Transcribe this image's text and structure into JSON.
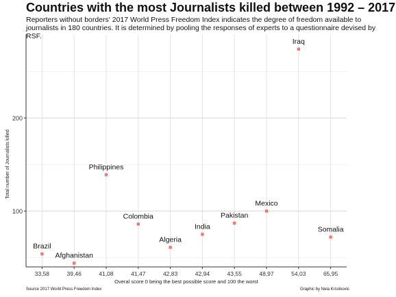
{
  "title": "Countries with the most Journalists killed between 1992 – 2017",
  "subtitle": "Reporters without borders' 2017 World Press Freedom Index indicates the degree of freedom available to journalists in 180 countries. It is determined by pooling the responses of experts to a questionnaire devised by RSF.",
  "source": "Source 2017 World Press Freedom Index",
  "credit": "Graphic by Nela Krsnikovic",
  "colors": {
    "point": "#f07a6e",
    "grid": "#e4e4e4",
    "axis": "#333333"
  },
  "chart_data": {
    "type": "scatter",
    "xlabel": "Overal score 0 being the best possible score and 100 the worst",
    "ylabel": "Total number of Journalists killed",
    "categories": [
      "33,58",
      "39,46",
      "41,08",
      "41,47",
      "42,83",
      "42,94",
      "43,55",
      "48,97",
      "54,03",
      "65,95"
    ],
    "ylim": [
      40,
      290
    ],
    "yticks": [
      100,
      200
    ],
    "grid": true,
    "points": [
      {
        "label": "Brazil",
        "x": "33,58",
        "y": 54
      },
      {
        "label": "Afghanistan",
        "x": "39,46",
        "y": 44
      },
      {
        "label": "Philippines",
        "x": "41,08",
        "y": 139
      },
      {
        "label": "Colombia",
        "x": "41,47",
        "y": 86
      },
      {
        "label": "Algeria",
        "x": "42,83",
        "y": 61
      },
      {
        "label": "India",
        "x": "42,94",
        "y": 75
      },
      {
        "label": "Pakistan",
        "x": "43,55",
        "y": 87
      },
      {
        "label": "Mexico",
        "x": "48,97",
        "y": 100
      },
      {
        "label": "Iraq",
        "x": "54,03",
        "y": 274
      },
      {
        "label": "Somalia",
        "x": "65,95",
        "y": 72
      }
    ]
  }
}
